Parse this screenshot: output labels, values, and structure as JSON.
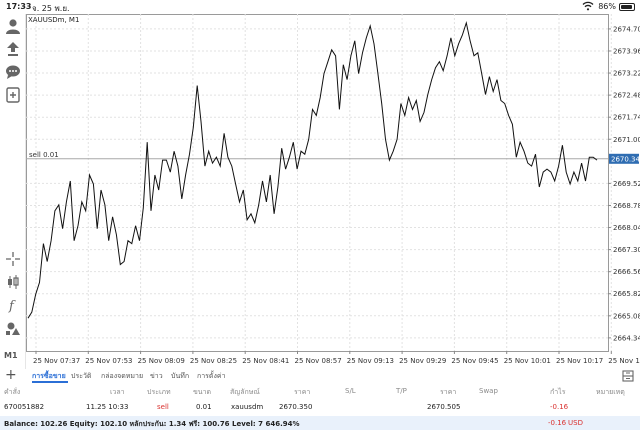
{
  "status": {
    "time": "17:33",
    "date": "จ. 25 พ.ย.",
    "battery": "86%"
  },
  "chart": {
    "symbol": "XAUUSDm, M1",
    "sell_label": "sell 0.01",
    "current_price": "2670.345",
    "y_ticks": [
      "2674.700",
      "2673.960",
      "2673.220",
      "2672.480",
      "2671.740",
      "2671.000",
      "2669.520",
      "2668.780",
      "2668.040",
      "2667.300",
      "2666.560",
      "2665.820",
      "2665.080",
      "2664.340"
    ],
    "x_ticks": [
      "25 Nov 07:37",
      "25 Nov 07:53",
      "25 Nov 08:09",
      "25 Nov 08:25",
      "25 Nov 08:41",
      "25 Nov 08:57",
      "25 Nov 09:13",
      "25 Nov 09:29",
      "25 Nov 09:45",
      "25 Nov 10:01",
      "25 Nov 10:17",
      "25 Nov 10:33"
    ],
    "colors": {
      "line": "#111111",
      "grid": "#e2e2e2",
      "price_tag": "#2f6db2",
      "sell_line": "#a8a8a8"
    }
  },
  "chart_data": {
    "type": "line",
    "title": "XAUUSDm, M1",
    "xlabel": "",
    "ylabel": "",
    "ylim": [
      2663.9,
      2675.2
    ],
    "x_range": [
      "25 Nov 07:33",
      "25 Nov 10:34"
    ],
    "grid": true,
    "series": [
      {
        "values": [
          2665.0,
          2665.2,
          2665.8,
          2666.2,
          2667.5,
          2666.9,
          2667.6,
          2668.6,
          2668.8,
          2668.0,
          2668.9,
          2669.6,
          2667.6,
          2668.1,
          2668.9,
          2668.6,
          2669.8,
          2669.5,
          2668.0,
          2669.3,
          2668.8,
          2667.6,
          2668.4,
          2667.8,
          2666.8,
          2666.9,
          2667.6,
          2667.5,
          2668.1,
          2667.6,
          2668.7,
          2670.9,
          2668.6,
          2669.8,
          2669.3,
          2670.3,
          2670.3,
          2669.9,
          2670.6,
          2670.1,
          2669.0,
          2669.8,
          2670.5,
          2671.4,
          2672.8,
          2671.6,
          2670.1,
          2670.6,
          2670.2,
          2670.4,
          2670.1,
          2671.2,
          2670.4,
          2670.1,
          2669.5,
          2668.9,
          2669.3,
          2668.3,
          2668.5,
          2668.2,
          2668.8,
          2669.6,
          2668.9,
          2669.8,
          2668.5,
          2669.4,
          2670.7,
          2670.0,
          2670.4,
          2670.9,
          2670.0,
          2670.6,
          2670.5,
          2671.0,
          2672.0,
          2671.8,
          2672.4,
          2673.2,
          2673.6,
          2674.0,
          2673.8,
          2672.0,
          2673.5,
          2673.0,
          2673.8,
          2674.3,
          2673.2,
          2673.9,
          2674.4,
          2674.8,
          2674.2,
          2673.2,
          2672.2,
          2671.0,
          2670.3,
          2670.6,
          2671.0,
          2672.2,
          2671.8,
          2672.4,
          2672.0,
          2672.3,
          2671.6,
          2671.9,
          2672.5,
          2673.0,
          2673.4,
          2673.6,
          2673.3,
          2673.8,
          2674.4,
          2673.8,
          2674.2,
          2674.5,
          2674.9,
          2674.3,
          2673.8,
          2673.9,
          2673.2,
          2672.5,
          2673.1,
          2672.6,
          2673.0,
          2672.3,
          2672.2,
          2671.8,
          2671.5,
          2670.4,
          2670.9,
          2670.6,
          2670.2,
          2670.1,
          2670.5,
          2669.4,
          2669.9,
          2670.0,
          2669.9,
          2669.6,
          2670.1,
          2670.8,
          2669.9,
          2669.5,
          2669.9,
          2669.6,
          2670.2,
          2669.6,
          2670.4,
          2670.4,
          2670.3
        ]
      }
    ]
  },
  "tabs": [
    {
      "label": "การซื้อขาย",
      "active": true
    },
    {
      "label": "ประวัติ",
      "active": false
    },
    {
      "label": "กล่องจดหมาย",
      "active": false
    },
    {
      "label": "ข่าว",
      "active": false
    },
    {
      "label": "บันทึก",
      "active": false
    },
    {
      "label": "การตั้งค่า",
      "active": false
    }
  ],
  "table": {
    "headers": [
      "คำสั่ง",
      "เวลา",
      "ประเภท",
      "ขนาด",
      "สัญลักษณ์",
      "ราคา",
      "S/L",
      "T/P",
      "ราคา",
      "Swap",
      "กำไร",
      "หมายเหตุ"
    ],
    "row": {
      "order": "670051882",
      "time": "11.25 10:33",
      "type": "sell",
      "size": "0.01",
      "symbol": "xauusdm",
      "price": "2670.350",
      "sl": "",
      "tp": "",
      "current": "2670.505",
      "swap": "",
      "profit": "-0.16",
      "comment": ""
    },
    "balance": "Balance: 102.26 Equity: 102.10 หลักประกัน: 1.34 ฟรี: 100.76 Level: 7 646.94%",
    "balance_profit": "-0.16",
    "balance_currency": "USD"
  }
}
